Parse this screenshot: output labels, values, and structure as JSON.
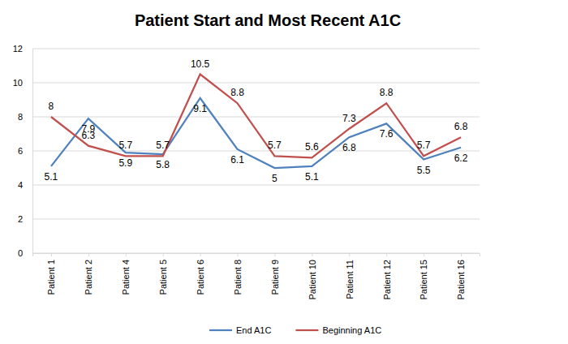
{
  "chart_data": {
    "type": "line",
    "title": "Patient Start and Most Recent A1C",
    "categories": [
      "Patient 1",
      "Patient 2",
      "Patient 4",
      "Patient 5",
      "Patient 6",
      "Patient 8",
      "Patient 9",
      "Patient 10",
      "Patient 11",
      "Patient 12",
      "Patient 15",
      "Patient 16"
    ],
    "series": [
      {
        "name": "End A1C",
        "color": "#4f81bd",
        "values": [
          5.1,
          7.9,
          5.9,
          5.8,
          9.1,
          6.1,
          5,
          5.1,
          6.8,
          7.6,
          5.5,
          6.2
        ]
      },
      {
        "name": "Beginning A1C",
        "color": "#c0504d",
        "values": [
          8,
          6.3,
          5.7,
          5.7,
          10.5,
          8.8,
          5.7,
          5.6,
          7.3,
          8.8,
          5.7,
          6.8
        ]
      }
    ],
    "ylim": [
      0,
      12
    ],
    "yticks": [
      0,
      2,
      4,
      6,
      8,
      10,
      12
    ],
    "grid": true,
    "legend": "bottom",
    "data_labels": true
  }
}
